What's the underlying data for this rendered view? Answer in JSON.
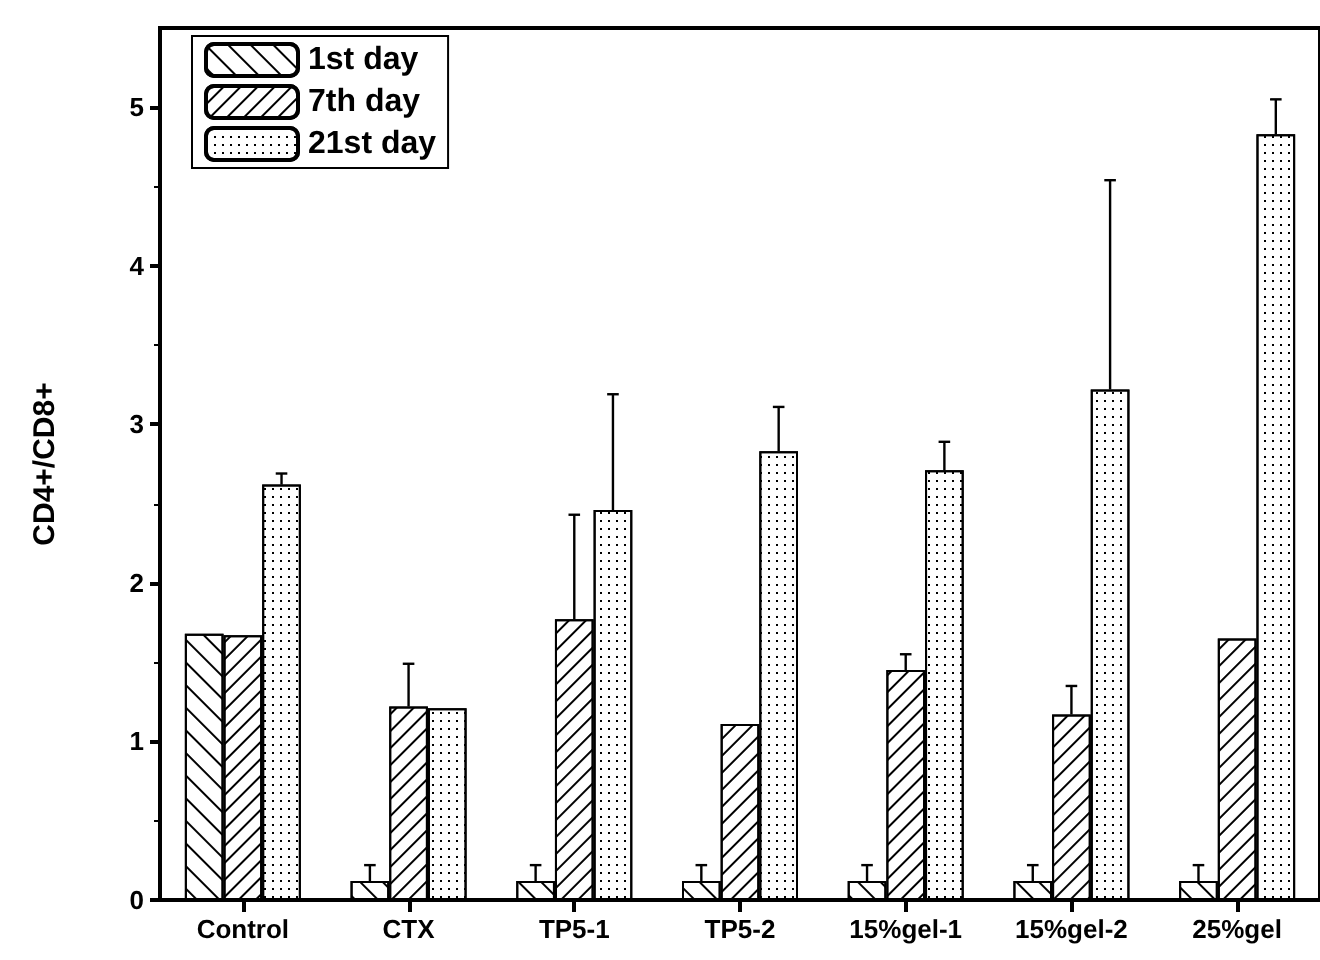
{
  "chart_data": {
    "type": "bar",
    "ylabel": "CD4+/CD8+",
    "categories": [
      "Control",
      "CTX",
      "TP5-1",
      "TP5-2",
      "15%gel-1",
      "15%gel-2",
      "25%gel"
    ],
    "series": [
      {
        "name": "1st day",
        "color": "#ffffff",
        "values": [
          1.68,
          0.12,
          0.12,
          0.12,
          0.12,
          0.12,
          0.12
        ],
        "errors": [
          null,
          [
            0.12,
            0.22
          ],
          [
            0.12,
            0.22
          ],
          [
            0.12,
            0.22
          ],
          [
            0.12,
            0.22
          ],
          [
            0.12,
            0.22
          ],
          [
            0.12,
            0.22
          ]
        ]
      },
      {
        "name": "7th day",
        "color": "#ffffff",
        "values": [
          1.67,
          1.22,
          1.77,
          1.11,
          1.45,
          1.17,
          1.65
        ],
        "errors": [
          null,
          [
            1.22,
            1.49
          ],
          [
            1.77,
            2.43
          ],
          null,
          [
            1.45,
            1.55
          ],
          [
            1.17,
            1.35
          ],
          null
        ]
      },
      {
        "name": "21st day",
        "color": "#ffffff",
        "values": [
          2.62,
          1.21,
          2.46,
          2.83,
          2.71,
          3.22,
          4.83
        ],
        "errors": [
          [
            2.62,
            2.69
          ],
          null,
          [
            2.46,
            3.19
          ],
          [
            2.83,
            3.11
          ],
          [
            2.71,
            2.89
          ],
          [
            3.22,
            4.54
          ],
          [
            4.83,
            5.05
          ]
        ]
      }
    ],
    "ylim": [
      0,
      5.5
    ],
    "yticks": [
      0,
      1,
      2,
      3,
      4,
      5
    ],
    "grid": false,
    "legend": "top left"
  }
}
